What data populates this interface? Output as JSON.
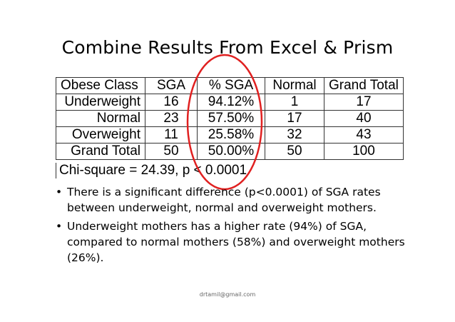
{
  "slide": {
    "title": "Combine Results From Excel & Prism",
    "footer": "drtamil@gmail.com"
  },
  "table": {
    "headers": [
      "Obese Class",
      "SGA",
      "% SGA",
      "Normal",
      "Grand Total"
    ],
    "rows": [
      [
        "Underweight",
        "16",
        "94.12%",
        "1",
        "17"
      ],
      [
        "Normal",
        "23",
        "57.50%",
        "17",
        "40"
      ],
      [
        "Overweight",
        "11",
        "25.58%",
        "32",
        "43"
      ],
      [
        "Grand Total",
        "50",
        "50.00%",
        "50",
        "100"
      ]
    ],
    "chi_square": "Chi-square = 24.39, p < 0.0001"
  },
  "highlight_color": "#e02020",
  "bullets": [
    "There is a significant difference (p<0.0001) of SGA rates between underweight, normal and overweight mothers.",
    "Underweight mothers has a higher rate (94%) of SGA, compared to normal mothers (58%) and overweight mothers (26%)."
  ],
  "bullet_symbol": "•"
}
